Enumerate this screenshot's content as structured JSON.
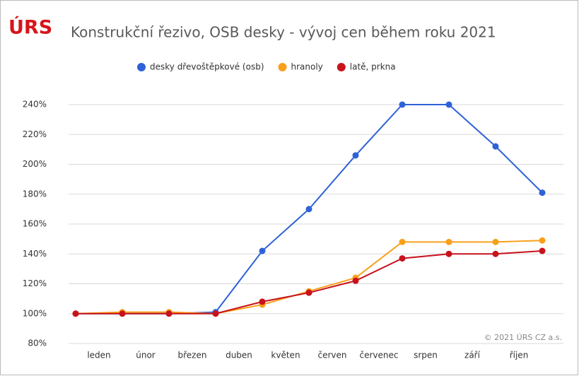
{
  "chart_data": {
    "type": "line",
    "logo": "ÚRS",
    "title": "Konstrukční řezivo, OSB desky - vývoj cen během roku 2021",
    "annotation": "© 2021 ÚRS CZ a.s.",
    "categories": [
      "leden",
      "únor",
      "březen",
      "duben",
      "květen",
      "červen",
      "červenec",
      "srpen",
      "září",
      "říjen",
      null
    ],
    "series": [
      {
        "name": "desky dřevoštěpkové (osb)",
        "color": "#2e62d6",
        "values": [
          100,
          100,
          100,
          101,
          142,
          170,
          206,
          240,
          240,
          212,
          181
        ]
      },
      {
        "name": "hranoly",
        "color": "#f8a01c",
        "values": [
          100,
          101,
          101,
          100,
          106,
          115,
          124,
          148,
          148,
          148,
          149
        ]
      },
      {
        "name": "latě, prkna",
        "color": "#c8121c",
        "values": [
          100,
          100,
          100,
          100,
          108,
          114,
          122,
          137,
          140,
          140,
          142
        ]
      }
    ],
    "ylim": [
      80,
      240
    ],
    "yticks": [
      {
        "value": 80,
        "label": "80%"
      },
      {
        "value": 100,
        "label": "100%"
      },
      {
        "value": 120,
        "label": "120%"
      },
      {
        "value": 140,
        "label": "140%"
      },
      {
        "value": 160,
        "label": "160%"
      },
      {
        "value": 180,
        "label": "180%"
      },
      {
        "value": 200,
        "label": "200%"
      },
      {
        "value": 220,
        "label": "220%"
      },
      {
        "value": 240,
        "label": "240%"
      }
    ],
    "grid": true,
    "legend": "top"
  }
}
